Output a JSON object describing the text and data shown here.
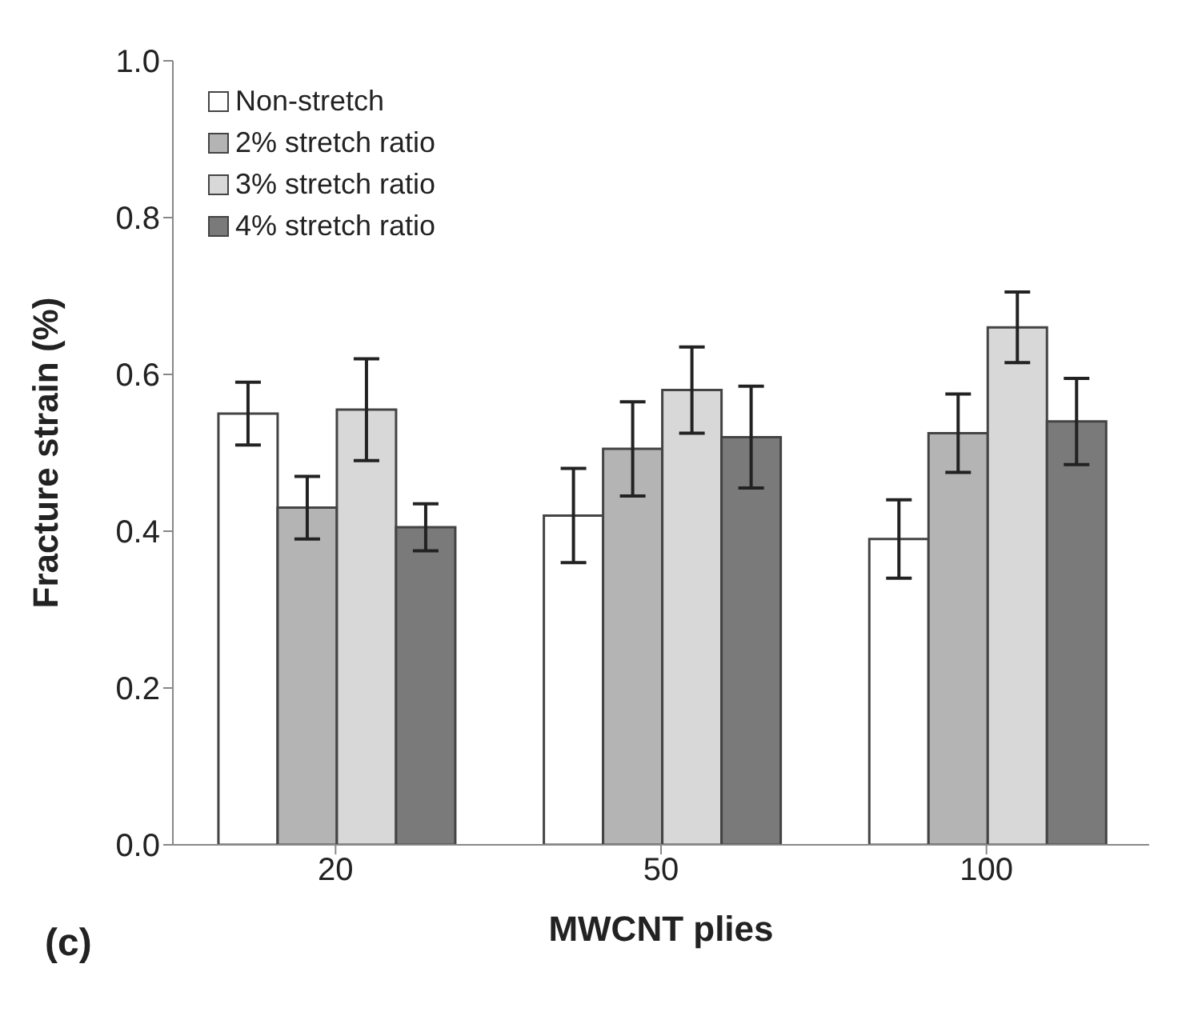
{
  "chart_data": {
    "type": "bar",
    "xlabel": "MWCNT plies",
    "ylabel": "Fracture strain (%)",
    "categories": [
      "20",
      "50",
      "100"
    ],
    "series": [
      {
        "name": "Non-stretch",
        "color": "#ffffff",
        "values": [
          0.55,
          0.42,
          0.39
        ],
        "errors": [
          0.04,
          0.06,
          0.05
        ]
      },
      {
        "name": "2% stretch ratio",
        "color": "#b4b4b4",
        "values": [
          0.43,
          0.505,
          0.525
        ],
        "errors": [
          0.04,
          0.06,
          0.05
        ]
      },
      {
        "name": "3% stretch ratio",
        "color": "#d8d8d8",
        "values": [
          0.555,
          0.58,
          0.66
        ],
        "errors": [
          0.065,
          0.055,
          0.045
        ]
      },
      {
        "name": "4% stretch ratio",
        "color": "#7a7a7a",
        "values": [
          0.405,
          0.52,
          0.54
        ],
        "errors": [
          0.03,
          0.065,
          0.055
        ]
      }
    ],
    "ylim": [
      0,
      1
    ],
    "yticks": [
      {
        "value": 0,
        "label": "0.0"
      },
      {
        "value": 0.2,
        "label": "0.2"
      },
      {
        "value": 0.4,
        "label": "0.4"
      },
      {
        "value": 0.6,
        "label": "0.6"
      },
      {
        "value": 0.8,
        "label": "0.8"
      },
      {
        "value": 1,
        "label": "1.0"
      }
    ],
    "grid": false,
    "legend": "top left",
    "annotations": [
      "(c)"
    ]
  }
}
